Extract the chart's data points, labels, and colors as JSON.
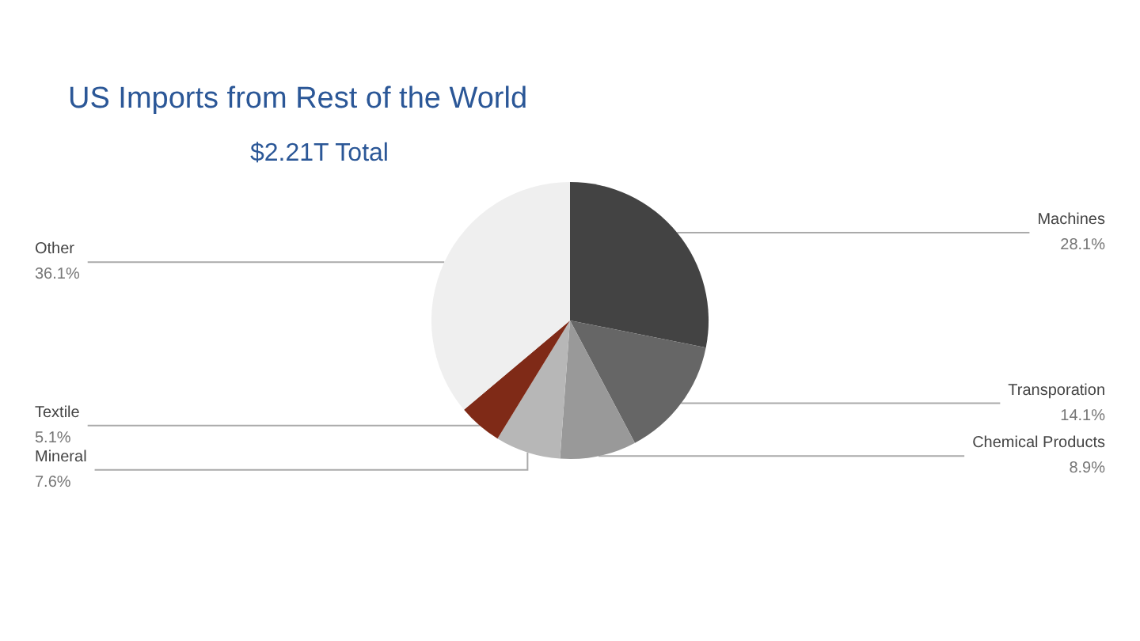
{
  "chart_data": {
    "type": "pie",
    "title": "US Imports from Rest of the World",
    "subtitle": "$2.21T Total",
    "categories": [
      "Machines",
      "Transporation",
      "Chemical Products",
      "Mineral",
      "Textile",
      "Other"
    ],
    "values": [
      28.1,
      14.1,
      8.9,
      7.6,
      5.1,
      36.1
    ],
    "colors": [
      "#434343",
      "#666666",
      "#999999",
      "#b7b7b7",
      "#7f2a17",
      "#efefef"
    ],
    "value_labels": [
      "28.1%",
      "14.1%",
      "8.9%",
      "7.6%",
      "5.1%",
      "36.1%"
    ],
    "legend": false
  }
}
